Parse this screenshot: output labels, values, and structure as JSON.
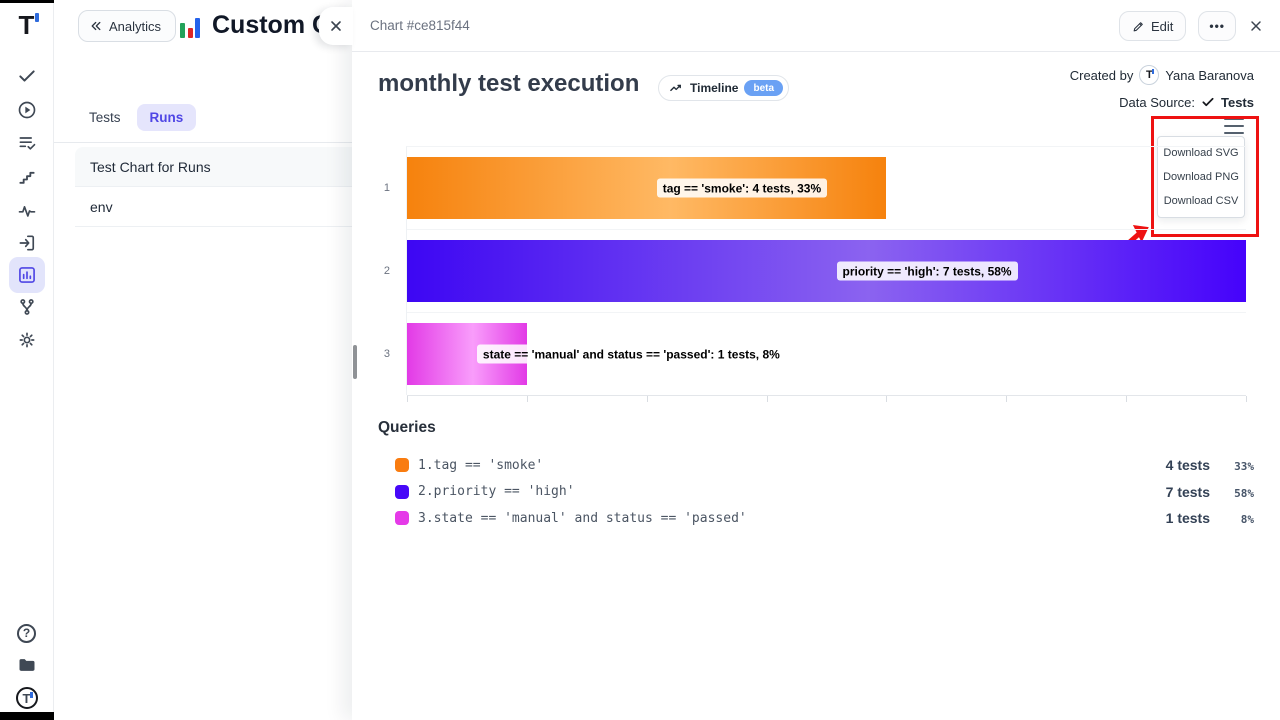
{
  "sidebar": {
    "back_button": "Analytics",
    "title": "Custom Ch",
    "tabs": [
      {
        "label": "Tests",
        "active": false
      },
      {
        "label": "Runs",
        "active": true
      }
    ],
    "items": [
      "Test Chart for Runs",
      "env"
    ]
  },
  "rail": {
    "icons": [
      "t-logo",
      "check",
      "play",
      "list-check",
      "steps",
      "activity",
      "import",
      "analytics-active",
      "branch",
      "gear",
      "help",
      "folder",
      "t-logo-circle"
    ]
  },
  "header": {
    "title": "Chart #ce815f44",
    "edit_label": "Edit",
    "more_label": "•••"
  },
  "chart_head": {
    "title": "monthly test execution",
    "timeline_label": "Timeline",
    "beta_label": "beta",
    "created_by_label": "Created by",
    "created_by_name": "Yana Baranova",
    "avatar_initial": "T",
    "data_source_label": "Data Source:",
    "data_source_value": "Tests"
  },
  "menu": {
    "items": [
      "Download SVG",
      "Download PNG",
      "Download CSV"
    ]
  },
  "chart_data": {
    "type": "bar",
    "orientation": "horizontal",
    "title": "monthly test execution",
    "categories": [
      "1",
      "2",
      "3"
    ],
    "values": [
      4,
      7,
      1
    ],
    "percents": [
      33,
      58,
      8
    ],
    "bar_labels": [
      "tag == 'smoke': 4 tests, 33%",
      "priority == 'high': 7 tests, 58%",
      "state == 'manual' and status == 'passed': 1 tests, 8%"
    ],
    "bar_gradients": [
      [
        "#f6820d",
        "#ffb964",
        "#f6820d"
      ],
      [
        "#3d06f3",
        "#8b63f0",
        "#4502fb"
      ],
      [
        "#e23ae6",
        "#f99dfb",
        "#e23ae6"
      ]
    ],
    "xlim": [
      0,
      7
    ],
    "grid": true,
    "legend_position": "none"
  },
  "queries": {
    "heading": "Queries",
    "rows": [
      {
        "index": "1.",
        "query": "tag == 'smoke'",
        "tests": "4 tests",
        "percent": "33%",
        "color": "#f97c10"
      },
      {
        "index": "2.",
        "query": "priority == 'high'",
        "tests": "7 tests",
        "percent": "58%",
        "color": "#4708f8"
      },
      {
        "index": "3.",
        "query": "state == 'manual' and status == 'passed'",
        "tests": "1 tests",
        "percent": "8%",
        "color": "#e53ae8"
      }
    ]
  }
}
